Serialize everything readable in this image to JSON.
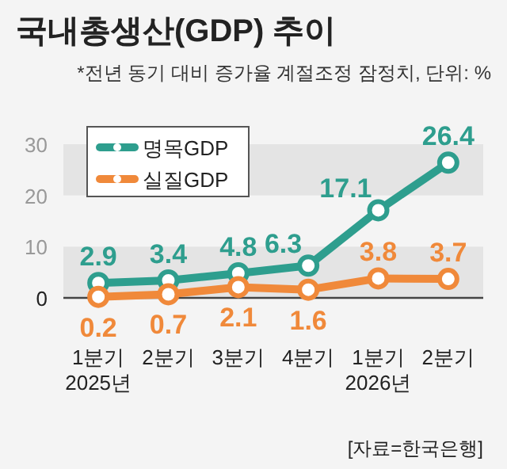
{
  "chart_data": {
    "type": "line",
    "title": "국내총생산(GDP) 추이",
    "subtitle": "*전년 동기 대비 증가율 계절조정 잠정치, 단위: %",
    "categories": [
      "1분기\n2025년",
      "2분기",
      "3분기",
      "4분기",
      "1분기\n2026년",
      "2분기"
    ],
    "series": [
      {
        "name": "명목GDP",
        "color": "#2e9e8e",
        "values": [
          2.9,
          3.4,
          4.8,
          6.3,
          17.1,
          26.4
        ]
      },
      {
        "name": "실질GDP",
        "color": "#f0893a",
        "values": [
          0.2,
          0.7,
          2.1,
          1.6,
          3.8,
          3.7
        ]
      }
    ],
    "ylim": [
      0,
      30
    ],
    "yticks": [
      0,
      10,
      20,
      30
    ],
    "bands": [
      {
        "axis": "y",
        "from": 0,
        "to": 10,
        "color": "#e4e4e4"
      },
      {
        "axis": "y",
        "from": 20,
        "to": 30,
        "color": "#e4e4e4"
      }
    ],
    "data_labels": true,
    "legend": "top left",
    "marker": "circle",
    "line_style": "solid",
    "annotations": [
      "[자료=한국은행]"
    ]
  }
}
